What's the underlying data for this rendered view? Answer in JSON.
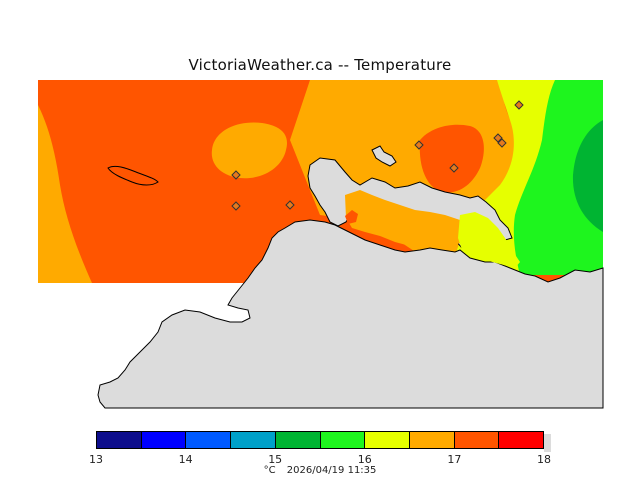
{
  "title": "VictoriaWeather.ca -- Temperature",
  "legend": {
    "unit": "°C",
    "timestamp": "2026/04/19 11:35",
    "ticks": [
      "13",
      "14",
      "15",
      "16",
      "17",
      "18"
    ],
    "bins": [
      {
        "from": 13.0,
        "to": 13.5,
        "color": "#0d0d8c"
      },
      {
        "from": 13.5,
        "to": 14.0,
        "color": "#0000ff"
      },
      {
        "from": 14.0,
        "to": 14.5,
        "color": "#005aff"
      },
      {
        "from": 14.5,
        "to": 15.0,
        "color": "#00a0c8"
      },
      {
        "from": 15.0,
        "to": 15.5,
        "color": "#00b432"
      },
      {
        "from": 15.5,
        "to": 16.0,
        "color": "#1ef51e"
      },
      {
        "from": 16.0,
        "to": 16.5,
        "color": "#e6ff00"
      },
      {
        "from": 16.5,
        "to": 17.0,
        "color": "#ffaa00"
      },
      {
        "from": 17.0,
        "to": 17.5,
        "color": "#ff5500"
      },
      {
        "from": 17.5,
        "to": 18.0,
        "color": "#ff0000"
      }
    ]
  },
  "colors": {
    "land_mask": "#dcdcdc",
    "coastline": "#000000",
    "station_fill": "#e67a1e"
  },
  "stations": {
    "count": 8,
    "marker": "diamond-icon"
  }
}
